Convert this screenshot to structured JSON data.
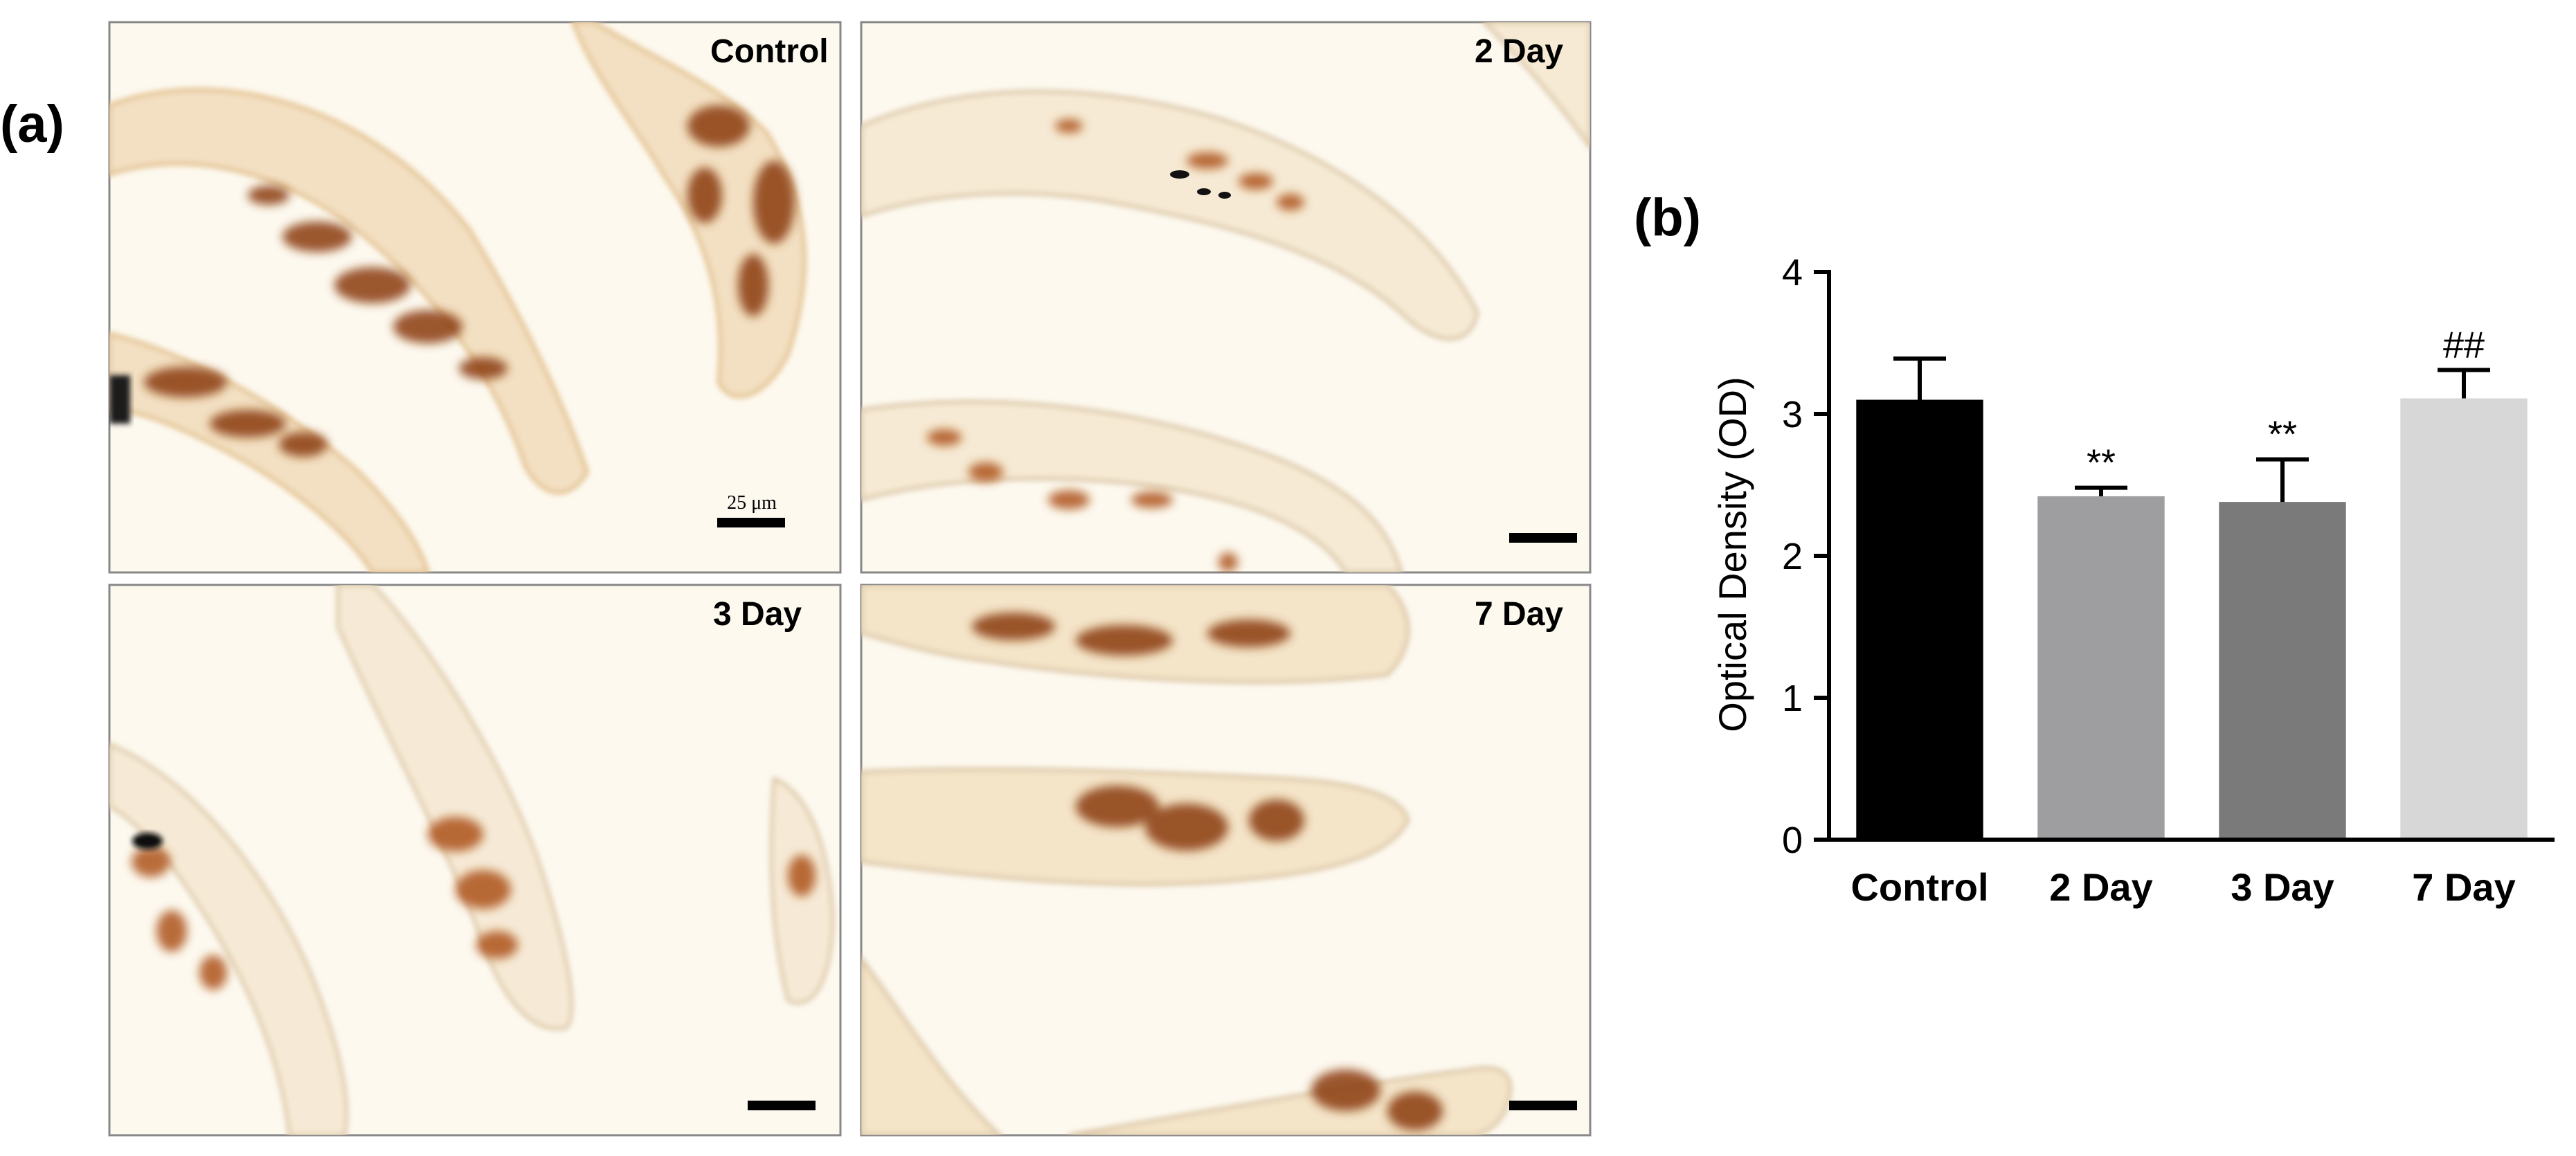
{
  "panel_a": {
    "letter": "(a)",
    "scale_bar_text": "25 μm",
    "images": [
      {
        "label": "Control",
        "desc": "IHC micrograph control"
      },
      {
        "label": "2 Day",
        "desc": "IHC micrograph 2 day"
      },
      {
        "label": "3 Day",
        "desc": "IHC micrograph 3 day"
      },
      {
        "label": "7 Day",
        "desc": "IHC micrograph 7 day"
      }
    ]
  },
  "panel_b": {
    "letter": "(b)"
  },
  "chart_data": {
    "type": "bar",
    "categories": [
      "Control",
      "2 Day",
      "3 Day",
      "7 Day"
    ],
    "values": [
      3.1,
      2.42,
      2.38,
      3.11
    ],
    "errors": [
      0.29,
      0.06,
      0.3,
      0.2
    ],
    "colors": [
      "#000000",
      "#9e9ea0",
      "#7a7a7a",
      "#d7d7d7"
    ],
    "annotations": [
      "",
      "**",
      "**",
      "##"
    ],
    "title": "",
    "xlabel": "",
    "ylabel": "Optical Density (OD)",
    "ylim": [
      0,
      4
    ],
    "yticks": [
      "0",
      "1",
      "2",
      "3",
      "4"
    ],
    "grid": false
  }
}
